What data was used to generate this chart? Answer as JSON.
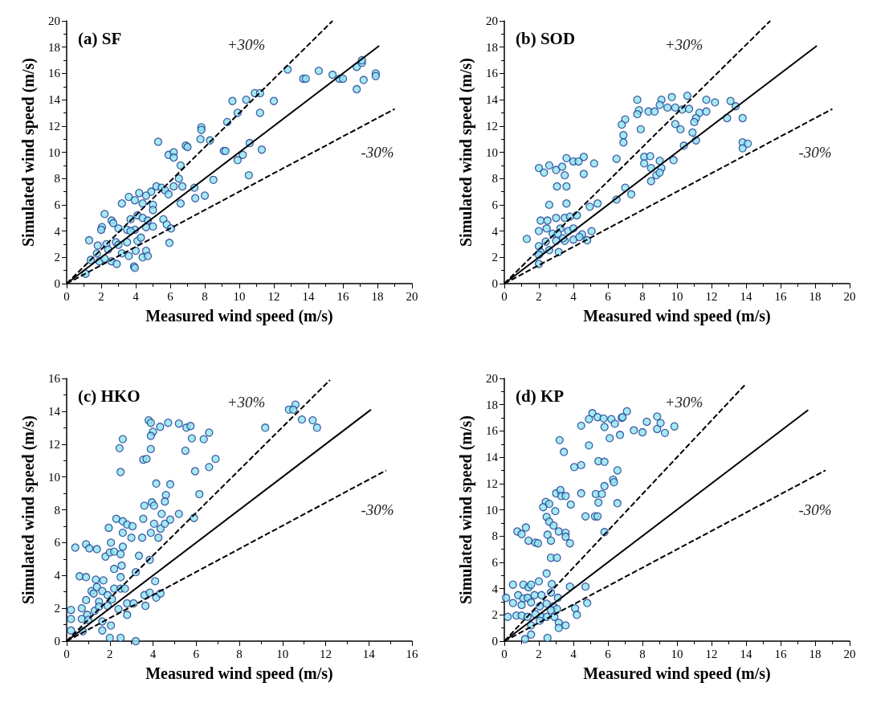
{
  "chart_data": [
    {
      "type": "scatter",
      "title": "(a) SF",
      "xlabel": "Measured wind speed (m/s)",
      "ylabel": "Simulated wind speed (m/s)",
      "xlim": [
        0,
        20
      ],
      "ylim": [
        0,
        20
      ],
      "xticks": [
        0,
        2,
        4,
        6,
        8,
        10,
        12,
        14,
        16,
        18,
        20
      ],
      "yticks": [
        0,
        2,
        4,
        6,
        8,
        10,
        12,
        14,
        16,
        18,
        20
      ],
      "grid": false,
      "marker": "circle",
      "annotations": [
        "+30%",
        "-30%"
      ],
      "series": [
        {
          "color": "#8fe3f0",
          "x": [
            12.8,
            13.7,
            13.85,
            14.6,
            15.4,
            15.8,
            16.0,
            16.8,
            17.1,
            17.1,
            17.2,
            16.8,
            17.9,
            17.9,
            9.6,
            10.4,
            10.9,
            11.2,
            12.0,
            9.9,
            11.2,
            9.3,
            7.8,
            7.8,
            7.75,
            8.3,
            5.3,
            5.9,
            6.2,
            6.2,
            6.9,
            7.0,
            6.6,
            9.1,
            9.2,
            10.6,
            10.2,
            9.9,
            11.3,
            10.55,
            8.5,
            6.5,
            6.7,
            6.2,
            7.4,
            7.45,
            8.0,
            6.6,
            5.2,
            5.5,
            5.7,
            5.9,
            4.9,
            4.2,
            4.6,
            3.6,
            3.2,
            3.95,
            4.4,
            5.0,
            5.0,
            2.2,
            2.6,
            2.7,
            3.7,
            4.1,
            4.4,
            4.7,
            5.6,
            5.8,
            6.05,
            5.95,
            2.05,
            2.0,
            1.3,
            3.0,
            3.5,
            3.95,
            4.6,
            5.0,
            1.8,
            2.3,
            2.85,
            3.5,
            4.1,
            1.4,
            1.9,
            2.2,
            2.6,
            2.9,
            3.2,
            3.6,
            4.0,
            4.6,
            4.4,
            4.7,
            3.9,
            3.95,
            1.1,
            1.75,
            2.4,
            3.7,
            4.3,
            3.0
          ],
          "values": [
            16.3,
            15.6,
            15.6,
            16.2,
            15.9,
            15.6,
            15.6,
            16.5,
            16.8,
            17.0,
            15.5,
            14.8,
            16.0,
            15.8,
            13.9,
            14.0,
            14.5,
            14.5,
            13.9,
            13.0,
            13.0,
            12.3,
            11.9,
            11.7,
            11.0,
            10.9,
            10.8,
            9.8,
            10.0,
            9.6,
            10.5,
            10.4,
            9.0,
            10.1,
            10.1,
            10.7,
            9.8,
            9.4,
            10.2,
            8.25,
            7.9,
            8.0,
            7.4,
            7.4,
            7.3,
            6.5,
            6.7,
            6.1,
            7.4,
            7.3,
            7.1,
            6.8,
            7.0,
            6.9,
            6.7,
            6.6,
            6.1,
            6.35,
            6.1,
            6.0,
            5.6,
            5.3,
            4.8,
            4.6,
            4.9,
            5.2,
            5.0,
            4.8,
            4.9,
            4.5,
            4.2,
            3.1,
            4.3,
            4.1,
            3.3,
            4.2,
            4.1,
            4.1,
            4.3,
            4.35,
            2.9,
            3.0,
            3.15,
            3.15,
            3.25,
            1.8,
            1.7,
            1.9,
            1.7,
            1.5,
            2.3,
            2.1,
            2.5,
            2.5,
            2.0,
            2.1,
            1.3,
            1.2,
            0.75,
            2.3,
            2.6,
            4.0,
            3.5,
            2.95
          ]
        },
        {
          "type": "line",
          "color": "#000000",
          "line_style": "solid",
          "marker": "none",
          "x": [
            0,
            18.1
          ],
          "values": [
            0,
            18.1
          ]
        },
        {
          "type": "line",
          "color": "#000000",
          "line_style": "dashed",
          "marker": "none",
          "x": [
            0,
            15.4
          ],
          "values": [
            0,
            20
          ]
        },
        {
          "type": "line",
          "color": "#000000",
          "line_style": "dashed",
          "marker": "none",
          "x": [
            0,
            19
          ],
          "values": [
            0,
            13.3
          ]
        }
      ]
    },
    {
      "type": "scatter",
      "title": "(b) SOD",
      "xlabel": "Measured wind speed (m/s)",
      "ylabel": "Simulated wind speed (m/s)",
      "xlim": [
        0,
        20
      ],
      "ylim": [
        0,
        20
      ],
      "xticks": [
        0,
        2,
        4,
        6,
        8,
        10,
        12,
        14,
        16,
        18,
        20
      ],
      "yticks": [
        0,
        2,
        4,
        6,
        8,
        10,
        12,
        14,
        16,
        18,
        20
      ],
      "grid": false,
      "marker": "circle",
      "annotations": [
        "+30%",
        "-30%"
      ],
      "series": [
        {
          "color": "#8fe3f0",
          "x": [
            7.7,
            9.1,
            9.7,
            10.6,
            11.7,
            12.2,
            13.1,
            13.4,
            7.8,
            8.35,
            8.7,
            9.0,
            9.45,
            9.9,
            10.3,
            10.7,
            7.7,
            11.3,
            11.7,
            11.1,
            11.0,
            10.9,
            11.1,
            12.9,
            13.8,
            7.0,
            6.8,
            6.9,
            6.9,
            7.9,
            9.9,
            10.2,
            10.4,
            13.8,
            14.1,
            13.8,
            6.5,
            8.1,
            8.45,
            8.1,
            8.5,
            9.0,
            9.1,
            9.8,
            8.8,
            9.0,
            8.5,
            2.0,
            2.3,
            2.6,
            3.0,
            3.35,
            3.5,
            3.6,
            4.0,
            4.3,
            4.6,
            5.2,
            4.6,
            3.05,
            3.6,
            7.0,
            7.35,
            6.5,
            2.6,
            3.6,
            4.95,
            5.4,
            2.1,
            2.5,
            3.0,
            3.5,
            3.8,
            4.2,
            2.0,
            2.45,
            2.8,
            3.25,
            3.7,
            4.0,
            1.3,
            2.0,
            2.4,
            3.0,
            3.5,
            4.0,
            4.5,
            5.05,
            4.8,
            2.1,
            2.6,
            3.15,
            2.0,
            2.0,
            3.1,
            3.4,
            4.35
          ],
          "values": [
            14.0,
            14.0,
            14.2,
            14.3,
            14.0,
            13.8,
            13.9,
            13.5,
            13.2,
            13.1,
            13.1,
            13.6,
            13.4,
            13.4,
            13.25,
            13.3,
            12.9,
            13.0,
            13.1,
            12.6,
            12.3,
            11.5,
            10.9,
            12.6,
            12.6,
            12.5,
            12.1,
            11.3,
            10.75,
            11.75,
            12.15,
            11.75,
            10.5,
            10.75,
            10.65,
            10.3,
            9.5,
            9.65,
            9.7,
            9.15,
            8.8,
            9.35,
            8.8,
            9.4,
            8.25,
            8.45,
            7.8,
            8.8,
            8.45,
            9.0,
            8.65,
            8.9,
            8.25,
            9.55,
            9.3,
            9.3,
            9.65,
            9.15,
            8.35,
            7.4,
            7.4,
            7.3,
            6.8,
            6.4,
            6.0,
            6.1,
            5.85,
            6.1,
            4.8,
            4.8,
            5.0,
            5.0,
            5.1,
            5.2,
            4.0,
            4.2,
            3.8,
            4.2,
            4.0,
            4.2,
            3.4,
            2.85,
            3.2,
            3.25,
            3.25,
            3.35,
            3.75,
            4.0,
            3.3,
            2.4,
            2.55,
            2.4,
            2.2,
            1.5,
            3.8,
            3.45,
            3.55
          ]
        },
        {
          "type": "line",
          "color": "#000000",
          "line_style": "solid",
          "marker": "none",
          "x": [
            0,
            18.1
          ],
          "values": [
            0,
            18.1
          ]
        },
        {
          "type": "line",
          "color": "#000000",
          "line_style": "dashed",
          "marker": "none",
          "x": [
            0,
            15.4
          ],
          "values": [
            0,
            20
          ]
        },
        {
          "type": "line",
          "color": "#000000",
          "line_style": "dashed",
          "marker": "none",
          "x": [
            0,
            19
          ],
          "values": [
            0,
            13.3
          ]
        }
      ]
    },
    {
      "type": "scatter",
      "title": "(c) HKO",
      "xlabel": "Measured wind speed (m/s)",
      "ylabel": "Simulated wind speed (m/s)",
      "xlim": [
        0,
        16
      ],
      "ylim": [
        0,
        16
      ],
      "xticks": [
        0,
        2,
        4,
        6,
        8,
        10,
        12,
        14,
        16
      ],
      "yticks": [
        0,
        2,
        4,
        6,
        8,
        10,
        12,
        14,
        16
      ],
      "grid": false,
      "marker": "circle",
      "annotations": [
        "+30%",
        "-30%"
      ],
      "series": [
        {
          "color": "#8fe3f0",
          "x": [
            10.6,
            10.3,
            10.5,
            10.9,
            11.4,
            11.6,
            9.2,
            3.8,
            3.9,
            4.33,
            4.7,
            5.2,
            5.55,
            5.74,
            4.0,
            3.9,
            5.8,
            6.35,
            6.6,
            2.6,
            2.45,
            3.9,
            5.5,
            3.55,
            3.7,
            2.5,
            6.9,
            6.6,
            5.95,
            4.15,
            4.8,
            4.6,
            4.55,
            3.6,
            3.95,
            4.05,
            6.15,
            5.2,
            4.4,
            5.9,
            2.3,
            2.6,
            2.8,
            3.05,
            1.95,
            3.55,
            4.05,
            3.9,
            4.25,
            4.35,
            4.55,
            4.8,
            2.6,
            3.0,
            3.5,
            2.05,
            2.6,
            0.4,
            0.9,
            1.05,
            1.4,
            1.8,
            2.0,
            2.2,
            2.5,
            3.35,
            3.85,
            2.2,
            2.55,
            2.5,
            3.2,
            0.6,
            0.9,
            1.35,
            1.7,
            4.1,
            1.15,
            1.4,
            1.65,
            1.25,
            1.9,
            2.2,
            2.5,
            2.7,
            0.9,
            1.5,
            2.1,
            2.8,
            3.1,
            3.6,
            3.85,
            4.15,
            4.35,
            3.65,
            0.2,
            0.7,
            0.95,
            1.3,
            1.5,
            1.9,
            2.4,
            2.8,
            0.2,
            0.7,
            1.0,
            1.65,
            2.05,
            1.65,
            0.2,
            0.75,
            2.0,
            2.5,
            3.2
          ],
          "values": [
            14.4,
            14.1,
            14.1,
            13.5,
            13.45,
            13.0,
            13.0,
            13.45,
            13.3,
            13.05,
            13.3,
            13.25,
            13.0,
            13.1,
            12.75,
            12.5,
            12.35,
            12.3,
            12.7,
            12.3,
            11.75,
            11.7,
            11.6,
            11.05,
            11.1,
            10.3,
            11.1,
            10.6,
            10.35,
            9.6,
            9.55,
            8.9,
            8.5,
            8.25,
            8.45,
            8.25,
            8.95,
            7.75,
            7.75,
            7.5,
            7.45,
            7.3,
            7.1,
            7.0,
            6.9,
            7.45,
            7.15,
            6.6,
            6.3,
            6.85,
            7.15,
            7.4,
            6.6,
            6.3,
            6.3,
            6.0,
            5.75,
            5.7,
            5.9,
            5.65,
            5.6,
            5.15,
            5.4,
            5.45,
            5.3,
            5.2,
            4.95,
            4.4,
            4.6,
            3.9,
            4.2,
            3.95,
            3.9,
            3.75,
            3.7,
            3.65,
            3.05,
            3.3,
            3.05,
            2.9,
            2.8,
            3.2,
            3.2,
            3.2,
            2.5,
            2.4,
            2.55,
            2.3,
            2.3,
            2.8,
            2.95,
            2.65,
            2.9,
            2.15,
            1.9,
            2.0,
            1.6,
            1.85,
            2.1,
            2.15,
            1.95,
            1.6,
            1.35,
            1.35,
            1.3,
            1.2,
            0.95,
            0.65,
            0.65,
            0.6,
            0.2,
            0.2,
            0.0
          ]
        },
        {
          "type": "line",
          "color": "#000000",
          "line_style": "solid",
          "marker": "none",
          "x": [
            0,
            14.1
          ],
          "values": [
            0,
            14.1
          ]
        },
        {
          "type": "line",
          "color": "#000000",
          "line_style": "dashed",
          "marker": "none",
          "x": [
            0,
            12.2
          ],
          "values": [
            0,
            15.9
          ]
        },
        {
          "type": "line",
          "color": "#000000",
          "line_style": "dashed",
          "marker": "none",
          "x": [
            0,
            14.8
          ],
          "values": [
            0,
            10.4
          ]
        }
      ]
    },
    {
      "type": "scatter",
      "title": "(d) KP",
      "xlabel": "Measured wind speed (m/s)",
      "ylabel": "Simulated wind speed (m/s)",
      "xlim": [
        0,
        20
      ],
      "ylim": [
        0,
        20
      ],
      "xticks": [
        0,
        2,
        4,
        6,
        8,
        10,
        12,
        14,
        16,
        18,
        20
      ],
      "yticks": [
        0,
        2,
        4,
        6,
        8,
        10,
        12,
        14,
        16,
        18,
        20
      ],
      "grid": false,
      "marker": "circle",
      "annotations": [
        "+30%",
        "-30%"
      ],
      "series": [
        {
          "color": "#8fe3f0",
          "x": [
            7.1,
            5.1,
            4.9,
            5.4,
            5.75,
            6.2,
            6.8,
            6.85,
            4.45,
            5.8,
            6.4,
            6.1,
            6.7,
            7.5,
            8.0,
            8.25,
            8.85,
            8.85,
            9.05,
            9.3,
            9.85,
            3.2,
            3.45,
            4.9,
            4.05,
            4.45,
            5.45,
            5.8,
            6.55,
            6.3,
            6.35,
            5.8,
            3.0,
            3.25,
            3.3,
            3.55,
            4.45,
            5.3,
            5.65,
            5.45,
            6.55,
            2.4,
            2.6,
            2.25,
            3.85,
            2.95,
            2.45,
            2.6,
            2.85,
            3.15,
            3.55,
            3.55,
            3.8,
            2.5,
            2.7,
            4.7,
            5.25,
            5.4,
            5.8,
            0.75,
            1.25,
            1.0,
            1.4,
            1.8,
            1.95,
            2.7,
            3.05,
            2.45,
            2.0,
            2.75,
            0.5,
            1.1,
            1.4,
            1.55,
            0.1,
            0.5,
            0.8,
            1.1,
            1.35,
            1.75,
            2.15,
            2.7,
            3.1,
            3.8,
            4.7,
            4.8,
            1.0,
            1.55,
            2.05,
            2.45,
            2.85,
            3.05,
            2.7,
            4.1,
            4.2,
            0.2,
            0.7,
            1.0,
            1.35,
            1.8,
            2.15,
            2.45,
            2.9,
            1.55,
            2.05,
            3.15,
            3.55,
            3.15,
            1.55,
            1.2,
            2.5
          ],
          "values": [
            17.5,
            17.35,
            16.9,
            17.05,
            16.95,
            16.9,
            17.0,
            17.05,
            16.4,
            16.3,
            16.55,
            15.45,
            15.7,
            16.05,
            15.9,
            16.7,
            17.1,
            16.15,
            16.6,
            15.85,
            16.35,
            15.3,
            14.4,
            14.9,
            13.25,
            13.4,
            13.7,
            13.65,
            13.0,
            12.3,
            12.1,
            11.8,
            11.25,
            11.5,
            11.05,
            11.05,
            11.25,
            11.2,
            11.2,
            10.55,
            10.5,
            10.6,
            10.45,
            10.2,
            10.4,
            9.9,
            9.45,
            9.1,
            8.8,
            8.35,
            8.25,
            7.95,
            7.45,
            8.1,
            7.65,
            9.5,
            9.5,
            9.5,
            8.3,
            8.35,
            8.65,
            8.15,
            7.65,
            7.5,
            7.45,
            6.35,
            6.35,
            5.15,
            4.55,
            4.35,
            4.3,
            4.3,
            4.1,
            4.3,
            3.3,
            2.9,
            3.5,
            3.25,
            3.3,
            3.5,
            3.5,
            3.7,
            3.3,
            4.15,
            4.15,
            2.9,
            2.75,
            2.95,
            2.65,
            2.85,
            2.65,
            2.45,
            2.35,
            2.5,
            2.0,
            1.85,
            1.95,
            1.95,
            1.85,
            2.05,
            1.85,
            1.85,
            1.85,
            1.2,
            1.55,
            1.4,
            1.2,
            1.0,
            0.5,
            0.15,
            0.25
          ]
        },
        {
          "type": "line",
          "color": "#000000",
          "line_style": "solid",
          "marker": "none",
          "x": [
            0,
            17.6
          ],
          "values": [
            0,
            17.6
          ]
        },
        {
          "type": "line",
          "color": "#000000",
          "line_style": "dashed",
          "marker": "none",
          "x": [
            0,
            14
          ],
          "values": [
            0,
            19.6
          ]
        },
        {
          "type": "line",
          "color": "#000000",
          "line_style": "dashed",
          "marker": "none",
          "x": [
            0,
            18.6
          ],
          "values": [
            0,
            13.0
          ]
        }
      ]
    }
  ]
}
